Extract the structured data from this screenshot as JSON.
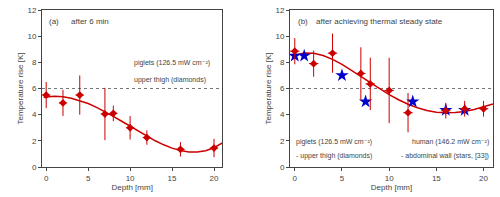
{
  "chart_data": [
    {
      "type": "scatter",
      "title": "(a)",
      "subtitle": "after 6 min",
      "xlabel": "Depth [mm]",
      "ylabel": "Temperature rise [K]",
      "xlim": [
        -0.5,
        21
      ],
      "ylim": [
        0,
        12
      ],
      "xticks": [
        0,
        5,
        10,
        15,
        20
      ],
      "yticks": [
        0,
        2,
        4,
        6,
        8,
        10,
        12
      ],
      "grid": false,
      "annotations": [
        "piglets (126.5 mW cm⁻²)",
        "upper thigh (diamonds)"
      ],
      "reference_line": {
        "y": 6.0,
        "color": "#777777",
        "line_style": "dotted"
      },
      "series": [
        {
          "type": "line",
          "color": "#cc0000",
          "x": [
            -0.3,
            0,
            1,
            2,
            3,
            4,
            5,
            6,
            7,
            8,
            9,
            10,
            11,
            12,
            13,
            14,
            15,
            16,
            17,
            18,
            19,
            20,
            21
          ],
          "values": [
            5.318,
            5.351,
            5.401,
            5.368,
            5.259,
            5.083,
            4.848,
            4.562,
            4.235,
            3.877,
            3.498,
            3.11,
            2.723,
            2.35,
            2.003,
            1.696,
            1.441,
            1.254,
            1.148,
            1.139,
            1.242,
            1.473,
            1.85
          ]
        },
        {
          "type": "scatter",
          "marker": "diamond",
          "color": "#cc0000",
          "x": [
            0,
            2,
            4,
            7,
            8,
            10,
            12,
            16,
            20
          ],
          "values": [
            5.5,
            4.9,
            5.5,
            4.05,
            4.1,
            3.0,
            2.25,
            1.35,
            1.45
          ],
          "x_err": [
            0.5,
            0.5,
            0.5,
            0.5,
            0.5,
            0.5,
            0.5,
            0.5,
            0.5
          ],
          "y_err": [
            1.0,
            1.0,
            1.5,
            2.0,
            0.6,
            0.9,
            0.55,
            0.55,
            0.7
          ]
        }
      ]
    },
    {
      "type": "scatter",
      "title": "(b)",
      "subtitle": "after achieving thermal steady state",
      "xlabel": "Depth [mm]",
      "ylabel": "Temperature rise [K]",
      "xlim": [
        -0.5,
        21
      ],
      "ylim": [
        0,
        12
      ],
      "xticks": [
        0,
        5,
        10,
        15,
        20
      ],
      "yticks": [
        0,
        2,
        4,
        6,
        8,
        10,
        12
      ],
      "grid": false,
      "annotations": [
        "piglets (126.5 mW cm⁻²)",
        "- upper thigh (diamonds)",
        "human (146.2 mW cm⁻²)",
        "- abdominal wall (stars, [33])"
      ],
      "reference_line": {
        "y": 6.0,
        "color": "#777777",
        "line_style": "dotted"
      },
      "series": [
        {
          "type": "line",
          "color": "#cc0000",
          "x": [
            -0.3,
            0,
            1,
            2,
            3,
            4,
            5,
            6,
            7,
            8,
            9,
            10,
            11,
            12,
            13,
            14,
            15,
            16,
            17,
            18,
            19,
            20,
            21
          ],
          "values": [
            8.459,
            8.553,
            8.721,
            8.697,
            8.52,
            8.224,
            7.841,
            7.399,
            6.926,
            6.445,
            5.975,
            5.534,
            5.139,
            4.799,
            4.524,
            4.321,
            4.192,
            4.139,
            4.158,
            4.246,
            4.392,
            4.587,
            4.817
          ]
        },
        {
          "type": "scatter",
          "marker": "star",
          "color": "#0000cc",
          "x": [
            0,
            1,
            5,
            7.5,
            12.5,
            16,
            18
          ],
          "values": [
            8.5,
            8.5,
            7.0,
            5.0,
            5.0,
            4.35,
            4.35
          ]
        },
        {
          "type": "scatter",
          "marker": "diamond",
          "color": "#cc0000",
          "x": [
            0,
            2,
            4,
            7,
            8,
            10,
            12,
            16,
            18,
            20
          ],
          "values": [
            8.85,
            7.9,
            8.7,
            7.15,
            6.35,
            5.85,
            4.15,
            4.3,
            4.45,
            4.45
          ],
          "x_err": [
            0.5,
            0.5,
            0.5,
            0.5,
            0.5,
            0.5,
            0.5,
            0.5,
            0.5,
            0.5
          ],
          "y_err": [
            1.0,
            1.0,
            1.5,
            2.0,
            2.0,
            2.5,
            1.5,
            0.6,
            0.6,
            0.6
          ]
        }
      ]
    }
  ]
}
